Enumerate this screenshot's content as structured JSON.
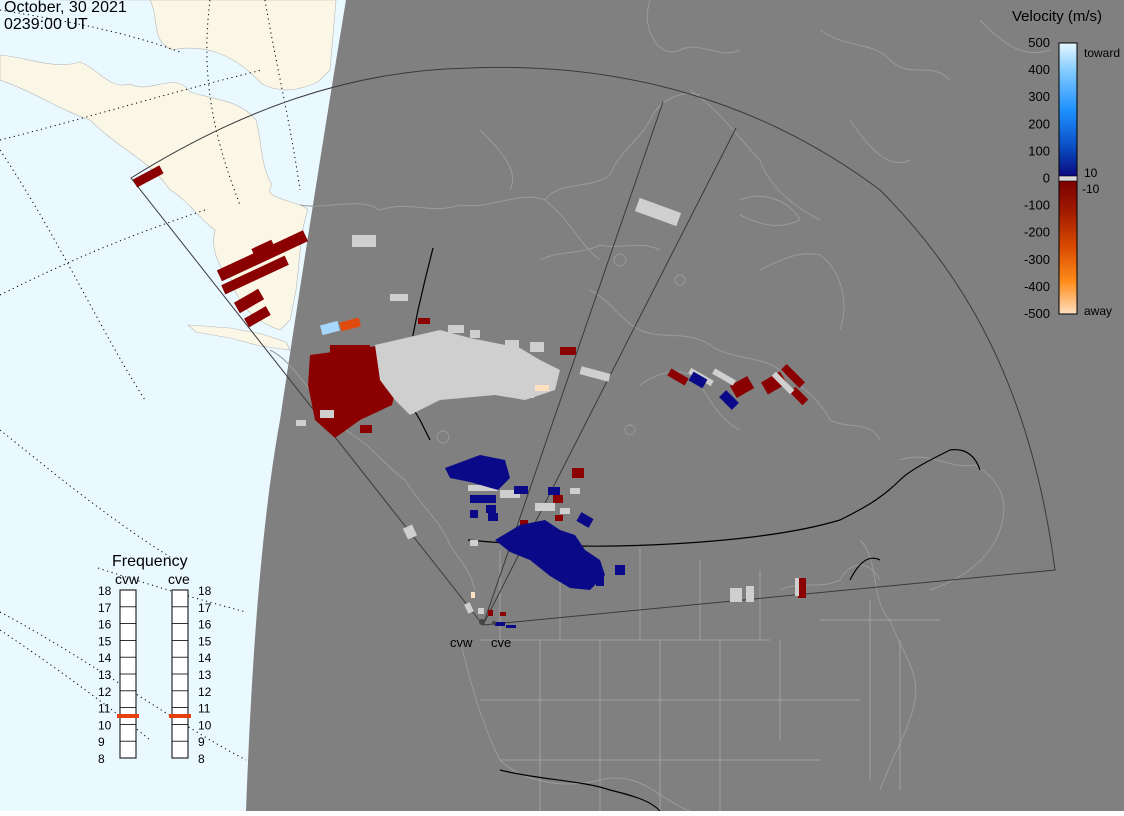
{
  "header": {
    "date": "October, 30 2021",
    "time": "0239:00 UT"
  },
  "colors": {
    "night": "#808080",
    "ocean": "#eaf8ff",
    "land_day": "#fbf7e6",
    "coast": "#9a9a9a",
    "border": "#000000",
    "unknown": "#cfcfcf",
    "toward_strong": "#0a0a8a",
    "away_strong": "#8b0000",
    "marker": "#e8400c"
  },
  "legend": {
    "title": "Velocity (m/s)",
    "ticks": [
      "500",
      "400",
      "300",
      "200",
      "100",
      "0",
      "-100",
      "-200",
      "-300",
      "-400",
      "-500"
    ],
    "toward_label": "toward",
    "away_label": "away",
    "ten_label": "10",
    "minus_ten_label": "-10"
  },
  "frequency": {
    "title": "Frequency",
    "radars": [
      {
        "name": "cvw",
        "value": 10.5
      },
      {
        "name": "cve",
        "value": 10.5
      }
    ],
    "ticks": [
      "18",
      "17",
      "16",
      "15",
      "14",
      "13",
      "12",
      "11",
      "10",
      "9",
      "8"
    ]
  },
  "stations": [
    {
      "name": "cvw",
      "icon": "radar-site"
    },
    {
      "name": "cve",
      "icon": "radar-site"
    }
  ]
}
